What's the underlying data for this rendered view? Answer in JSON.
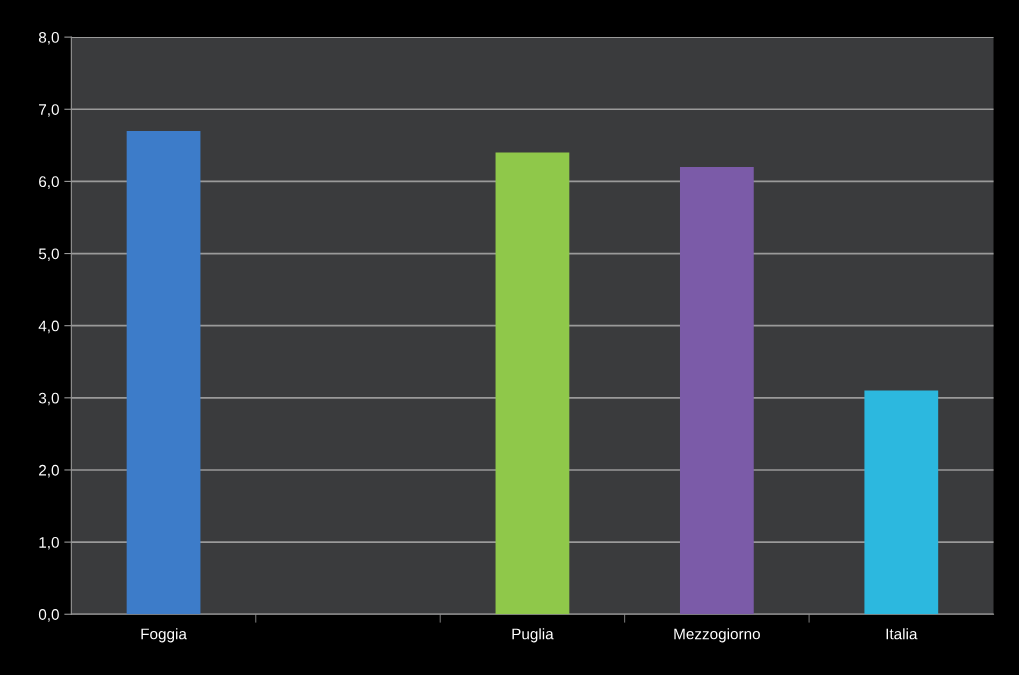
{
  "chart_data": {
    "type": "bar",
    "categories": [
      "Foggia",
      null,
      "Puglia",
      "Mezzogiorno",
      "Italia"
    ],
    "values": [
      6.7,
      null,
      6.4,
      6.2,
      3.1
    ],
    "colors": [
      "#3d7cc9",
      "#4a4a4a",
      "#8fc84a",
      "#7b5ba8",
      "#2cb8df"
    ],
    "ylim": [
      0,
      8
    ],
    "yticks": [
      {
        "value": 0,
        "label": "0,0"
      },
      {
        "value": 1,
        "label": "1,0"
      },
      {
        "value": 2,
        "label": "2,0"
      },
      {
        "value": 3,
        "label": "3,0"
      },
      {
        "value": 4,
        "label": "4,0"
      },
      {
        "value": 5,
        "label": "5,0"
      },
      {
        "value": 6,
        "label": "6,0"
      },
      {
        "value": 7,
        "label": "7,0"
      },
      {
        "value": 8,
        "label": "8,0"
      }
    ],
    "grid": "y"
  }
}
